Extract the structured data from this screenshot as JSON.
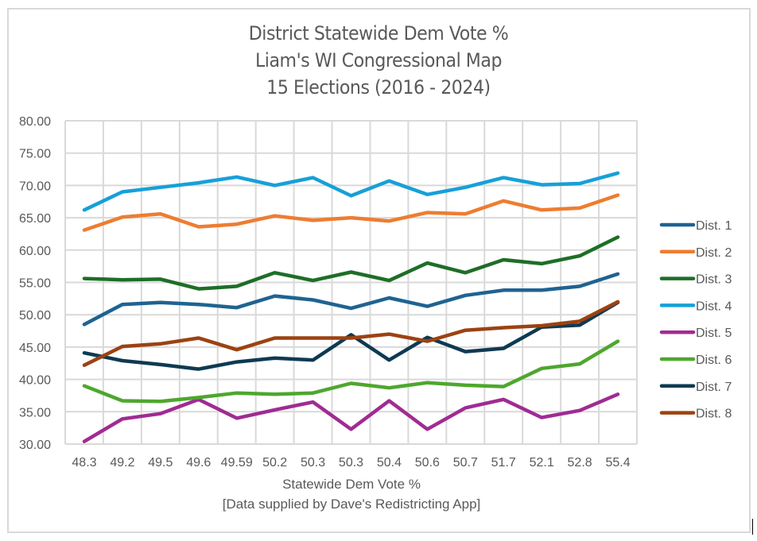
{
  "chart_data": {
    "type": "line",
    "title_lines": [
      "District Statewide Dem Vote %",
      "Liam's WI Congressional Map",
      "15 Elections (2016 - 2024)"
    ],
    "xlabel_lines": [
      "Statewide Dem Vote %",
      "[Data supplied by Dave's Redistricting App]"
    ],
    "ylabel": "",
    "ylim": [
      30,
      80
    ],
    "yticks": [
      "30.00",
      "35.00",
      "40.00",
      "45.00",
      "50.00",
      "55.00",
      "60.00",
      "65.00",
      "70.00",
      "75.00",
      "80.00"
    ],
    "ytick_values": [
      30,
      35,
      40,
      45,
      50,
      55,
      60,
      65,
      70,
      75,
      80
    ],
    "categories": [
      "48.3",
      "49.2",
      "49.5",
      "49.6",
      "49.59",
      "50.2",
      "50.3",
      "50.3",
      "50.4",
      "50.6",
      "50.7",
      "51.7",
      "52.1",
      "52.8",
      "55.4"
    ],
    "grid": true,
    "legend_position": "right",
    "series": [
      {
        "name": "Dist. 1",
        "color": "#1f6391",
        "values": [
          48.5,
          51.6,
          51.9,
          51.6,
          51.1,
          52.9,
          52.3,
          51.0,
          52.6,
          51.3,
          53.0,
          53.8,
          53.8,
          54.4,
          56.3
        ]
      },
      {
        "name": "Dist. 2",
        "color": "#ed7d31",
        "values": [
          63.1,
          65.1,
          65.6,
          63.6,
          64.0,
          65.3,
          64.6,
          65.0,
          64.5,
          65.8,
          65.6,
          67.6,
          66.2,
          66.5,
          68.5
        ]
      },
      {
        "name": "Dist. 3",
        "color": "#1e6e27",
        "values": [
          55.6,
          55.4,
          55.5,
          54.0,
          54.4,
          56.5,
          55.3,
          56.6,
          55.3,
          58.0,
          56.5,
          58.5,
          57.9,
          59.1,
          62.0
        ]
      },
      {
        "name": "Dist. 4",
        "color": "#17a0d8",
        "values": [
          66.2,
          69.0,
          69.7,
          70.4,
          71.3,
          70.0,
          71.2,
          68.4,
          70.7,
          68.6,
          69.7,
          71.2,
          70.1,
          70.3,
          71.9
        ]
      },
      {
        "name": "Dist. 5",
        "color": "#a02b93",
        "values": [
          30.4,
          33.9,
          34.7,
          36.9,
          34.0,
          35.3,
          36.5,
          32.3,
          36.7,
          32.3,
          35.6,
          36.9,
          34.1,
          35.2,
          37.7
        ]
      },
      {
        "name": "Dist. 6",
        "color": "#4ea72e",
        "values": [
          39.0,
          36.7,
          36.6,
          37.2,
          37.9,
          37.7,
          37.9,
          39.4,
          38.7,
          39.5,
          39.1,
          38.9,
          41.7,
          42.4,
          45.9
        ]
      },
      {
        "name": "Dist. 7",
        "color": "#0e3a52",
        "values": [
          44.1,
          42.9,
          42.3,
          41.6,
          42.7,
          43.3,
          43.0,
          46.9,
          43.0,
          46.5,
          44.3,
          44.8,
          48.1,
          48.4,
          51.9
        ]
      },
      {
        "name": "Dist. 8",
        "color": "#9c4212",
        "values": [
          42.2,
          45.1,
          45.5,
          46.4,
          44.6,
          46.4,
          46.4,
          46.4,
          47.0,
          45.9,
          47.6,
          48.0,
          48.3,
          49.0,
          52.0
        ]
      }
    ]
  }
}
